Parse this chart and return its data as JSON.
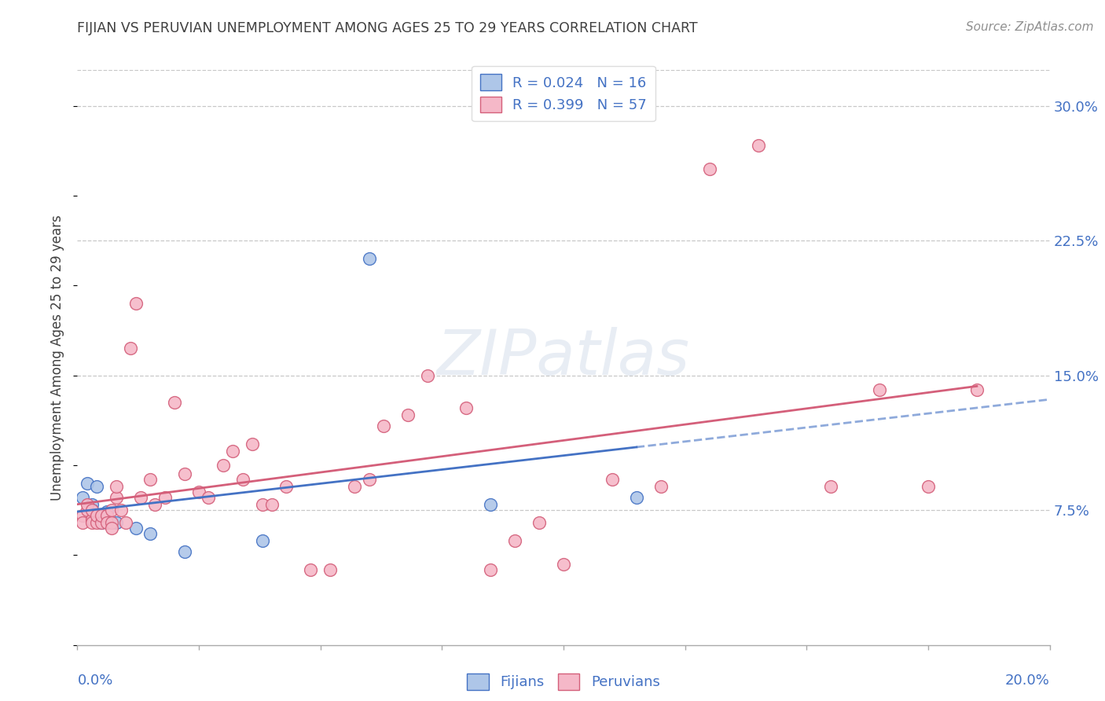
{
  "title": "FIJIAN VS PERUVIAN UNEMPLOYMENT AMONG AGES 25 TO 29 YEARS CORRELATION CHART",
  "source": "Source: ZipAtlas.com",
  "ylabel": "Unemployment Among Ages 25 to 29 years",
  "xlim": [
    0.0,
    0.2
  ],
  "ylim": [
    0.0,
    0.32
  ],
  "yticks": [
    0.075,
    0.15,
    0.225,
    0.3
  ],
  "ytick_labels": [
    "7.5%",
    "15.0%",
    "22.5%",
    "30.0%"
  ],
  "fijian_fill": "#aec6e8",
  "fijian_edge": "#4472c4",
  "peruvian_fill": "#f5b8c8",
  "peruvian_edge": "#d45f7a",
  "fijian_line_color": "#4472c4",
  "peruvian_line_color": "#d45f7a",
  "legend_text_color": "#4472c4",
  "title_color": "#404040",
  "axis_color": "#4472c4",
  "grid_color": "#c8c8c8",
  "R_fijian": 0.024,
  "N_fijian": 16,
  "R_peruvian": 0.399,
  "N_peruvian": 57,
  "fijian_x": [
    0.001,
    0.002,
    0.003,
    0.003,
    0.004,
    0.005,
    0.005,
    0.006,
    0.008,
    0.012,
    0.015,
    0.022,
    0.038,
    0.06,
    0.085,
    0.115
  ],
  "fijian_y": [
    0.082,
    0.09,
    0.078,
    0.075,
    0.088,
    0.072,
    0.068,
    0.074,
    0.068,
    0.065,
    0.062,
    0.052,
    0.058,
    0.215,
    0.078,
    0.082
  ],
  "peruvian_x": [
    0.001,
    0.001,
    0.002,
    0.002,
    0.003,
    0.003,
    0.003,
    0.004,
    0.004,
    0.005,
    0.005,
    0.006,
    0.006,
    0.007,
    0.007,
    0.007,
    0.008,
    0.008,
    0.009,
    0.01,
    0.011,
    0.012,
    0.013,
    0.015,
    0.016,
    0.018,
    0.02,
    0.022,
    0.025,
    0.027,
    0.03,
    0.032,
    0.034,
    0.036,
    0.038,
    0.04,
    0.043,
    0.048,
    0.052,
    0.057,
    0.06,
    0.063,
    0.068,
    0.072,
    0.08,
    0.085,
    0.09,
    0.095,
    0.1,
    0.11,
    0.12,
    0.13,
    0.14,
    0.155,
    0.165,
    0.175,
    0.185
  ],
  "peruvian_y": [
    0.072,
    0.068,
    0.075,
    0.078,
    0.07,
    0.075,
    0.068,
    0.068,
    0.072,
    0.068,
    0.072,
    0.072,
    0.068,
    0.075,
    0.068,
    0.065,
    0.082,
    0.088,
    0.075,
    0.068,
    0.165,
    0.19,
    0.082,
    0.092,
    0.078,
    0.082,
    0.135,
    0.095,
    0.085,
    0.082,
    0.1,
    0.108,
    0.092,
    0.112,
    0.078,
    0.078,
    0.088,
    0.042,
    0.042,
    0.088,
    0.092,
    0.122,
    0.128,
    0.15,
    0.132,
    0.042,
    0.058,
    0.068,
    0.045,
    0.092,
    0.088,
    0.265,
    0.278,
    0.088,
    0.142,
    0.088,
    0.142
  ]
}
